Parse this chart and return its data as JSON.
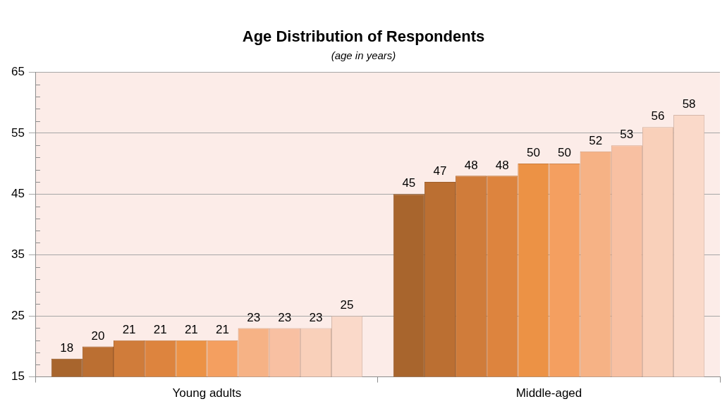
{
  "chart_data": {
    "type": "bar",
    "title": "Age Distribution of Respondents",
    "subtitle": "(age in years)",
    "categories": [
      "Young adults",
      "Middle-aged"
    ],
    "series": [
      {
        "color": "#a8652d",
        "values": [
          18,
          45
        ]
      },
      {
        "color": "#bb6f32",
        "values": [
          20,
          47
        ]
      },
      {
        "color": "#d07c3a",
        "values": [
          21,
          48
        ]
      },
      {
        "color": "#dd843e",
        "values": [
          21,
          48
        ]
      },
      {
        "color": "#ec9245",
        "values": [
          21,
          50
        ]
      },
      {
        "color": "#f49f60",
        "values": [
          21,
          50
        ]
      },
      {
        "color": "#f6b285",
        "values": [
          23,
          52
        ]
      },
      {
        "color": "#f8c0a2",
        "values": [
          23,
          53
        ]
      },
      {
        "color": "#f9d0ba",
        "values": [
          23,
          56
        ]
      },
      {
        "color": "#fad9c9",
        "values": [
          25,
          58
        ]
      }
    ],
    "ylim": [
      15,
      65
    ],
    "yticks": [
      15,
      {
        "value": 17,
        "label": null
      },
      {
        "value": 19,
        "label": null
      },
      {
        "value": 21,
        "label": null
      },
      {
        "value": 23,
        "label": null
      },
      25,
      {
        "value": 27,
        "label": null
      },
      {
        "value": 29,
        "label": null
      },
      {
        "value": 31,
        "label": null
      },
      {
        "value": 33,
        "label": null
      },
      35,
      {
        "value": 37,
        "label": null
      },
      {
        "value": 39,
        "label": null
      },
      {
        "value": 41,
        "label": null
      },
      {
        "value": 43,
        "label": null
      },
      45,
      {
        "value": 47,
        "label": null
      },
      {
        "value": 49,
        "label": null
      },
      {
        "value": 51,
        "label": null
      },
      {
        "value": 53,
        "label": null
      },
      55,
      {
        "value": 57,
        "label": null
      },
      {
        "value": 59,
        "label": null
      },
      {
        "value": 61,
        "label": null
      },
      {
        "value": 63,
        "label": null
      },
      65
    ],
    "grid": "y",
    "data_labels": true,
    "legend": false
  }
}
